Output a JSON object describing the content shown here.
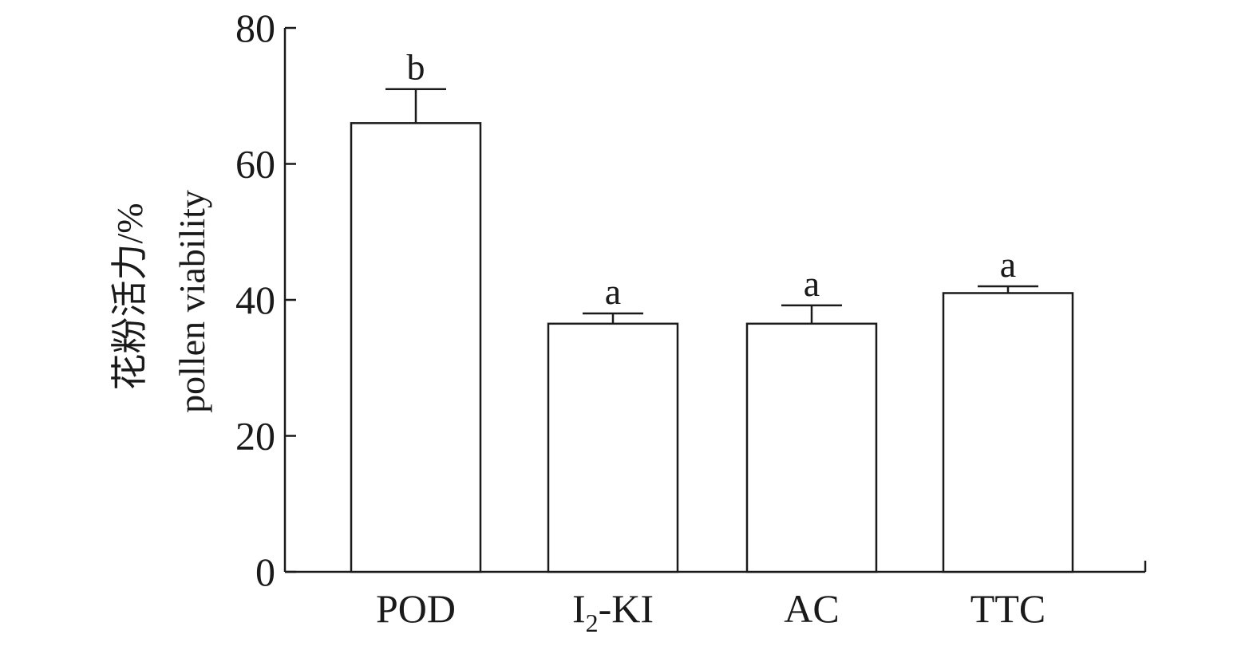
{
  "chart_data": {
    "type": "bar",
    "categories": [
      "POD",
      "I2-KI",
      "AC",
      "TTC"
    ],
    "category_labels": [
      {
        "main": "POD",
        "sub": "",
        "rest": ""
      },
      {
        "main": "I",
        "sub": "2",
        "rest": "-KI"
      },
      {
        "main": "AC",
        "sub": "",
        "rest": ""
      },
      {
        "main": "TTC",
        "sub": "",
        "rest": ""
      }
    ],
    "values": [
      66,
      36.5,
      36.5,
      41
    ],
    "errors": [
      5,
      1.5,
      2.7,
      1
    ],
    "significance": [
      "b",
      "a",
      "a",
      "a"
    ],
    "ylabel_cn": "花粉活力/%",
    "ylabel_en": "pollen viability",
    "ylim": [
      0,
      80
    ],
    "yticks": [
      0,
      20,
      40,
      60,
      80
    ],
    "grid": false,
    "legend": "none",
    "colors": {
      "bar_fill": "#ffffff",
      "stroke": "#1a1a1a"
    }
  }
}
